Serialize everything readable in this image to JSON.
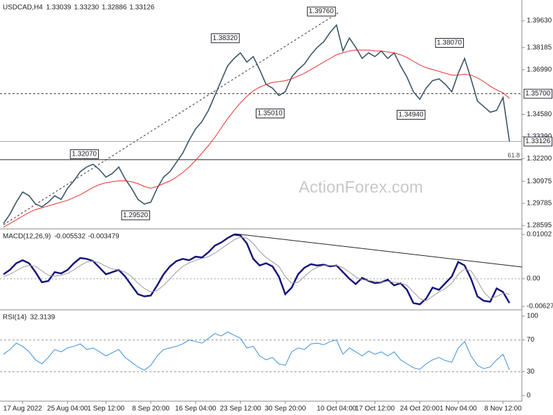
{
  "chart_data": [
    {
      "type": "line",
      "title": "USDCAD,H4",
      "header_values": [
        "1.33039",
        "1.33230",
        "1.32886",
        "1.33126"
      ],
      "watermark": "ActionForex.com",
      "ylim": [
        1.28446,
        1.40674
      ],
      "yticks": [
        {
          "value": 1.3963,
          "label": "1.39630"
        },
        {
          "value": 1.38185,
          "label": "1.38185"
        },
        {
          "value": 1.3699,
          "label": "1.36990"
        },
        {
          "value": 1.3458,
          "label": "1.34580"
        },
        {
          "value": 1.3339,
          "label": "1.33390"
        },
        {
          "value": 1.322,
          "label": "1.32200"
        },
        {
          "value": 1.30975,
          "label": "1.30975"
        },
        {
          "value": 1.29785,
          "label": "1.29785"
        },
        {
          "value": 1.28595,
          "label": "1.28595"
        }
      ],
      "series": [
        {
          "name": "USDCAD",
          "color": "#3a5466",
          "values": [
            1.287,
            1.292,
            1.2985,
            1.304,
            1.302,
            1.2975,
            1.296,
            1.2985,
            1.302,
            1.3,
            1.306,
            1.31,
            1.315,
            1.3175,
            1.319,
            1.316,
            1.312,
            1.314,
            1.3175,
            1.311,
            1.306,
            1.3,
            1.2975,
            1.2985,
            1.306,
            1.312,
            1.315,
            1.32,
            1.325,
            1.332,
            1.338,
            1.342,
            1.348,
            1.356,
            1.364,
            1.372,
            1.376,
            1.379,
            1.374,
            1.377,
            1.37,
            1.362,
            1.36,
            1.356,
            1.358,
            1.366,
            1.37,
            1.373,
            1.378,
            1.382,
            1.385,
            1.39,
            1.394,
            1.38,
            1.387,
            1.382,
            1.376,
            1.379,
            1.377,
            1.38,
            1.376,
            1.379,
            1.372,
            1.366,
            1.358,
            1.354,
            1.36,
            1.364,
            1.365,
            1.362,
            1.358,
            1.368,
            1.376,
            1.365,
            1.353,
            1.35,
            1.347,
            1.348,
            1.355,
            1.3313
          ]
        },
        {
          "name": "MA",
          "color": "#e03030",
          "values": [
            1.285,
            1.287,
            1.289,
            1.291,
            1.293,
            1.2945,
            1.2955,
            1.2965,
            1.2975,
            1.2985,
            1.2995,
            1.301,
            1.3025,
            1.3045,
            1.3065,
            1.308,
            1.309,
            1.3095,
            1.31,
            1.31,
            1.3095,
            1.3085,
            1.307,
            1.306,
            1.307,
            1.3085,
            1.31,
            1.312,
            1.3145,
            1.3175,
            1.321,
            1.325,
            1.329,
            1.3335,
            1.3385,
            1.3435,
            1.348,
            1.352,
            1.3555,
            1.3585,
            1.3605,
            1.362,
            1.363,
            1.3635,
            1.364,
            1.365,
            1.3665,
            1.368,
            1.37,
            1.372,
            1.374,
            1.376,
            1.378,
            1.379,
            1.38,
            1.3805,
            1.3805,
            1.3805,
            1.38,
            1.38,
            1.3795,
            1.379,
            1.378,
            1.3765,
            1.3745,
            1.3725,
            1.371,
            1.37,
            1.369,
            1.368,
            1.367,
            1.367,
            1.3675,
            1.367,
            1.3655,
            1.3635,
            1.361,
            1.359,
            1.3575,
            1.3545
          ]
        }
      ],
      "annotations": [
        {
          "value": 1.3976,
          "label": "1.39760"
        },
        {
          "value": 1.3832,
          "label": "1.38320"
        },
        {
          "value": 1.3501,
          "label": "1.35010"
        },
        {
          "value": 1.3494,
          "label": "1.34940"
        },
        {
          "value": 1.3807,
          "label": "1.38070"
        },
        {
          "value": 1.3207,
          "label": "1.32070"
        },
        {
          "value": 1.2952,
          "label": "1.29520"
        }
      ],
      "levels": [
        {
          "value": 1.357,
          "label": "1.35700",
          "style": "dashed"
        },
        {
          "value": 1.33126,
          "label": "1.33126",
          "style": "current"
        },
        {
          "value": 1.3214,
          "label": "61.8",
          "style": "fib"
        }
      ]
    },
    {
      "type": "line",
      "title": "MACD(12,26,9)",
      "header_values": [
        "-0.005532",
        "-0.003479"
      ],
      "ylim": [
        -0.00689,
        0.01096
      ],
      "yticks": [
        {
          "value": 0.01002,
          "label": "0.01002"
        },
        {
          "value": 0,
          "label": "0.00"
        },
        {
          "value": -0.006272,
          "label": "-0.006272"
        }
      ],
      "series": [
        {
          "name": "MACD",
          "color": "#14147a",
          "values": [
            0.001,
            0.002,
            0.0035,
            0.0042,
            0.0035,
            0.0015,
            -0.0008,
            -0.0005,
            0.0015,
            0.0012,
            0.002,
            0.0035,
            0.0047,
            0.0045,
            0.004,
            0.0025,
            0.001,
            0.0015,
            0.002,
            0.0005,
            -0.0015,
            -0.0035,
            -0.004,
            -0.0038,
            -0.0015,
            0.001,
            0.0028,
            0.004,
            0.0045,
            0.0042,
            0.005,
            0.0048,
            0.006,
            0.0075,
            0.0082,
            0.0092,
            0.01,
            0.0098,
            0.008,
            0.0045,
            0.003,
            0.0035,
            0.0028,
            0.0005,
            -0.0035,
            -0.002,
            0.001,
            0.0025,
            0.0033,
            0.003,
            0.0032,
            0.0028,
            0.003,
            0.0015,
            0,
            -0.0012,
            0.0002,
            -0.0005,
            -0.001,
            -0.0008,
            -0.0002,
            -0.0015,
            -0.001,
            -0.0025,
            -0.0055,
            -0.0058,
            -0.0045,
            -0.002,
            -0.0025,
            -0.001,
            0.0005,
            0.0038,
            0.003,
            0,
            -0.004,
            -0.005,
            -0.0052,
            -0.0022,
            -0.003,
            -0.0055
          ]
        },
        {
          "name": "Signal",
          "color": "#9a9a9a",
          "values": [
            0.0005,
            0.001,
            0.0018,
            0.0026,
            0.003,
            0.0028,
            0.0018,
            0.0008,
            0.0006,
            0.0008,
            0.0012,
            0.002,
            0.003,
            0.0038,
            0.004,
            0.0036,
            0.0028,
            0.0022,
            0.002,
            0.0015,
            0.0005,
            -0.001,
            -0.0022,
            -0.003,
            -0.0027,
            -0.0015,
            0,
            0.0015,
            0.0028,
            0.0036,
            0.0042,
            0.0046,
            0.005,
            0.0058,
            0.0068,
            0.0078,
            0.0088,
            0.0094,
            0.0092,
            0.008,
            0.0062,
            0.0048,
            0.0038,
            0.0028,
            0.0005,
            -0.001,
            -0.0008,
            0.0005,
            0.0018,
            0.0026,
            0.003,
            0.003,
            0.003,
            0.0025,
            0.0015,
            0.0004,
            -0.0002,
            -0.0004,
            -0.0006,
            -0.0008,
            -0.0006,
            -0.0008,
            -0.001,
            -0.0015,
            -0.003,
            -0.0045,
            -0.005,
            -0.004,
            -0.003,
            -0.0022,
            -0.001,
            0.001,
            0.0022,
            0.0018,
            -0.0005,
            -0.003,
            -0.0045,
            -0.004,
            -0.0033,
            -0.0035
          ]
        }
      ]
    },
    {
      "type": "line",
      "title": "RSI(14)",
      "header_values": [
        "32.3139"
      ],
      "ylim": [
        -7,
        106.1
      ],
      "yticks": [
        100,
        70,
        30,
        0
      ],
      "levels": [
        70,
        30
      ],
      "categories": [
        null,
        null,
        null,
        "17 Aug 2022",
        null,
        null,
        null,
        null,
        null,
        null,
        "25 Aug 04:00",
        null,
        null,
        null,
        null,
        null,
        "1 Sep 12:00",
        null,
        null,
        null,
        null,
        null,
        null,
        "8 Sep 20:00",
        null,
        null,
        null,
        null,
        null,
        null,
        "16 Sep 04:00",
        null,
        null,
        null,
        null,
        null,
        null,
        "23 Sep 12:00",
        null,
        null,
        null,
        null,
        null,
        null,
        "30 Sep 20:00",
        null,
        null,
        null,
        null,
        null,
        null,
        null,
        "10 Oct 04:00",
        null,
        null,
        null,
        null,
        null,
        "17 Oct 12:00",
        null,
        null,
        null,
        null,
        null,
        null,
        "24 Oct 20:00",
        null,
        null,
        null,
        null,
        null,
        "1 Nov 04:00",
        null,
        null,
        null,
        null,
        null,
        null,
        "8 Nov 12:00",
        null
      ],
      "series": [
        {
          "name": "RSI",
          "color": "#3a8fd8",
          "values": [
            52,
            58,
            66,
            62,
            55,
            45,
            40,
            48,
            58,
            55,
            60,
            62,
            65,
            58,
            60,
            55,
            50,
            54,
            58,
            48,
            42,
            36,
            32,
            38,
            50,
            58,
            60,
            62,
            65,
            70,
            68,
            66,
            72,
            78,
            75,
            80,
            76,
            72,
            60,
            62,
            50,
            45,
            48,
            40,
            38,
            55,
            60,
            58,
            65,
            66,
            64,
            68,
            70,
            52,
            60,
            55,
            50,
            56,
            52,
            55,
            50,
            55,
            45,
            40,
            35,
            33,
            40,
            45,
            48,
            44,
            42,
            60,
            68,
            50,
            38,
            34,
            36,
            45,
            52,
            32.3139
          ]
        }
      ]
    }
  ]
}
